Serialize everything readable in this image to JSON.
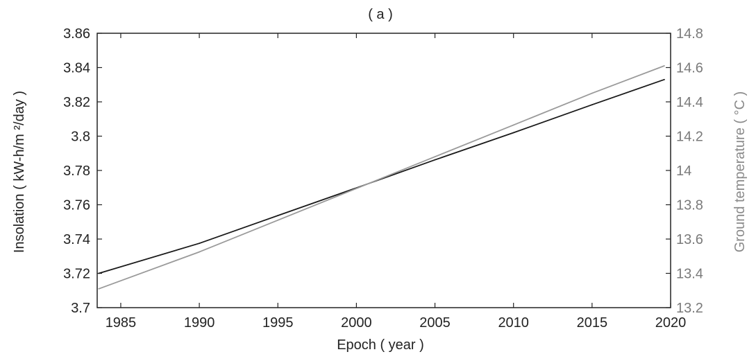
{
  "chart_data": {
    "type": "line",
    "title": "( a )",
    "xlabel": "Epoch ( year )",
    "ylabel_left": "Insolation ( kW-h/m ²/day )",
    "ylabel_right": "Ground temperature ( °C )",
    "xlim": [
      1983.5,
      2020
    ],
    "ylim_left": [
      3.7,
      3.86
    ],
    "ylim_right": [
      13.2,
      14.8
    ],
    "x_ticks": [
      1985,
      1990,
      1995,
      2000,
      2005,
      2010,
      2015,
      2020
    ],
    "y_left_ticks": [
      "3.7",
      "3.72",
      "3.74",
      "3.76",
      "3.78",
      "3.8",
      "3.82",
      "3.84",
      "3.86"
    ],
    "y_right_ticks": [
      "13.2",
      "13.4",
      "13.6",
      "13.8",
      "14",
      "14.2",
      "14.4",
      "14.6",
      "14.8"
    ],
    "grid": false,
    "series": [
      {
        "axis": "left",
        "color": "#1a1a1a",
        "x": [
          1983.6,
          1990,
          1995,
          2000,
          2005,
          2010,
          2015,
          2019.6
        ],
        "values": [
          3.72,
          3.7375,
          3.7537,
          3.7698,
          3.7862,
          3.802,
          3.8183,
          3.833
        ]
      },
      {
        "axis": "right",
        "color": "#9a9a9a",
        "x": [
          1983.6,
          1990,
          1995,
          2000,
          2005,
          2010,
          2015,
          2019.6
        ],
        "values": [
          13.31,
          13.525,
          13.71,
          13.895,
          14.08,
          14.265,
          14.45,
          14.61
        ]
      }
    ]
  }
}
